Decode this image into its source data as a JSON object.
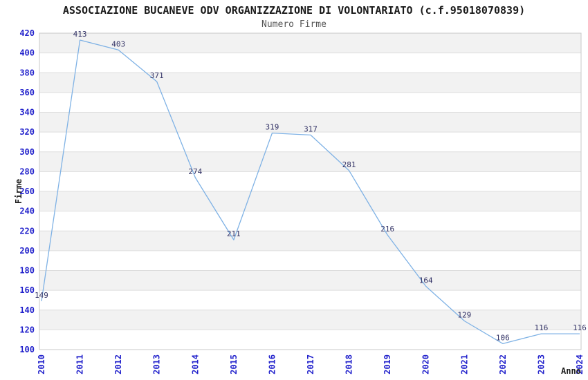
{
  "chart_data": {
    "type": "line",
    "title": "ASSOCIAZIONE BUCANEVE ODV ORGANIZZAZIONE DI VOLONTARIATO (c.f.95018070839)",
    "subtitle": "Numero Firme",
    "xlabel": "Anno",
    "ylabel": "Firme",
    "categories": [
      "2010",
      "2011",
      "2012",
      "2013",
      "2014",
      "2015",
      "2016",
      "2017",
      "2018",
      "2019",
      "2020",
      "2021",
      "2022",
      "2023",
      "2024"
    ],
    "values": [
      149,
      413,
      403,
      371,
      274,
      211,
      319,
      317,
      281,
      216,
      164,
      129,
      106,
      116,
      116
    ],
    "yticks": [
      100,
      120,
      140,
      160,
      180,
      200,
      220,
      240,
      260,
      280,
      300,
      320,
      340,
      360,
      380,
      400,
      420
    ],
    "ylim": [
      100,
      420
    ],
    "grid": "horizontal gridlines with alternating shaded bands",
    "legend": "none",
    "markers": "none",
    "x_tick_rotation": -90,
    "colors": {
      "line": "#7FB2E5",
      "tick_label": "#2323CC",
      "data_label": "#333366",
      "band": "#F2F2F2",
      "grid": "#DDDDDD",
      "border": "#C8C8C8",
      "title": "#1A1A1A",
      "subtitle": "#555555",
      "background": "#FFFFFF"
    }
  }
}
